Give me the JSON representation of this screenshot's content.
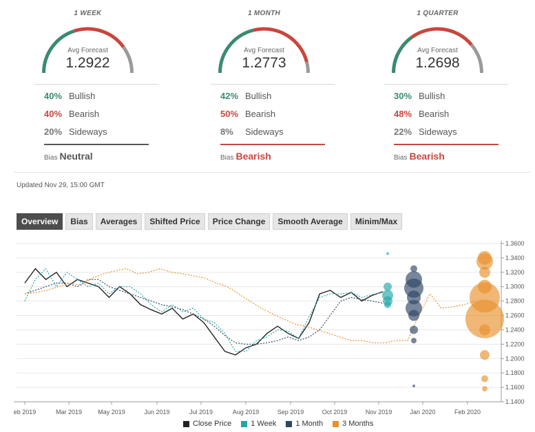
{
  "panels": [
    {
      "period": "1 WEEK",
      "avg_label": "Avg Forecast",
      "avg_value": "1.2922",
      "bullish_pct": "40%",
      "bullish_label": "Bullish",
      "bearish_pct": "40%",
      "bearish_label": "Bearish",
      "sideways_pct": "20%",
      "sideways_label": "Sideways",
      "bias_label": "Bias",
      "bias_value": "Neutral",
      "bias_color": "#555555"
    },
    {
      "period": "1 MONTH",
      "avg_label": "Avg Forecast",
      "avg_value": "1.2773",
      "bullish_pct": "42%",
      "bullish_label": "Bullish",
      "bearish_pct": "50%",
      "bearish_label": "Bearish",
      "sideways_pct": "8%",
      "sideways_label": "Sideways",
      "bias_label": "Bias",
      "bias_value": "Bearish",
      "bias_color": "#c9463d"
    },
    {
      "period": "1 QUARTER",
      "avg_label": "Avg Forecast",
      "avg_value": "1.2698",
      "bullish_pct": "30%",
      "bullish_label": "Bullish",
      "bearish_pct": "48%",
      "bearish_label": "Bearish",
      "sideways_pct": "22%",
      "sideways_label": "Sideways",
      "bias_label": "Bias",
      "bias_value": "Bearish",
      "bias_color": "#c9463d"
    }
  ],
  "colors": {
    "bullish": "#3b8a72",
    "bearish": "#c9463d",
    "sideways": "#9a9a9a"
  },
  "updated": "Updated Nov 29, 15:00 GMT",
  "tabs": [
    "Overview",
    "Bias",
    "Averages",
    "Shifted Price",
    "Price Change",
    "Smooth Average",
    "Minim/Max"
  ],
  "active_tab": 0,
  "chart_data": {
    "type": "line",
    "x_ticks": [
      "eb 2019",
      "Mar 2019",
      "May 2019",
      "Jun 2019",
      "Jul 2019",
      "Aug 2019",
      "Sep 2019",
      "Oct 2019",
      "Nov 2019",
      "Jan 2020",
      "Feb 2020"
    ],
    "y_ticks": [
      "1.3600",
      "1.3400",
      "1.3200",
      "1.3000",
      "1.2800",
      "1.2600",
      "1.2400",
      "1.2200",
      "1.2000",
      "1.1800",
      "1.1600",
      "1.1400"
    ],
    "ylim": [
      1.14,
      1.36
    ],
    "grid": true,
    "legend_position": "bottom",
    "series": [
      {
        "name": "Close Price",
        "color": "#222222",
        "style": "solid",
        "values": [
          1.305,
          1.325,
          1.31,
          1.32,
          1.3,
          1.31,
          1.305,
          1.3,
          1.285,
          1.3,
          1.29,
          1.275,
          1.268,
          1.262,
          1.27,
          1.255,
          1.262,
          1.25,
          1.23,
          1.21,
          1.205,
          1.215,
          1.22,
          1.235,
          1.245,
          1.235,
          1.228,
          1.25,
          1.29,
          1.295,
          1.285,
          1.292,
          1.28,
          1.288,
          1.293
        ]
      },
      {
        "name": "1 Week",
        "color": "#22a7a7",
        "style": "dotted",
        "values": [
          1.28,
          1.31,
          1.325,
          1.3,
          1.32,
          1.31,
          1.3,
          1.305,
          1.29,
          1.3,
          1.3,
          1.29,
          1.275,
          1.265,
          1.275,
          1.265,
          1.27,
          1.255,
          1.25,
          1.235,
          1.21,
          1.21,
          1.225,
          1.23,
          1.24,
          1.238,
          1.228,
          1.258,
          1.285,
          1.29,
          1.29,
          1.292,
          1.285,
          1.289,
          1.292
        ]
      },
      {
        "name": "1 Month",
        "color": "#2e4566",
        "style": "dotted",
        "values": [
          1.29,
          1.295,
          1.3,
          1.305,
          1.305,
          1.3,
          1.31,
          1.31,
          1.3,
          1.295,
          1.29,
          1.285,
          1.28,
          1.275,
          1.272,
          1.268,
          1.262,
          1.255,
          1.245,
          1.232,
          1.222,
          1.22,
          1.22,
          1.222,
          1.225,
          1.23,
          1.225,
          1.23,
          1.24,
          1.26,
          1.28,
          1.285,
          1.282,
          1.28,
          1.277
        ]
      },
      {
        "name": "3 Months",
        "color": "#e8902c",
        "style": "dotted",
        "values": [
          1.29,
          1.292,
          1.295,
          1.3,
          1.305,
          1.302,
          1.312,
          1.318,
          1.322,
          1.325,
          1.318,
          1.32,
          1.325,
          1.32,
          1.318,
          1.315,
          1.312,
          1.305,
          1.3,
          1.29,
          1.28,
          1.27,
          1.262,
          1.255,
          1.248,
          1.245,
          1.24,
          1.235,
          1.23,
          1.225,
          1.225,
          1.222,
          1.222,
          1.225,
          1.225,
          1.26,
          1.29,
          1.27,
          1.272,
          1.275,
          1.28
        ]
      }
    ],
    "bubbles": {
      "1 Week": [
        1.346,
        1.3,
        1.288,
        1.28,
        1.275
      ],
      "1 Month": [
        1.325,
        1.31,
        1.298,
        1.285,
        1.27,
        1.26,
        1.24,
        1.225,
        1.162
      ],
      "3 Months": [
        1.34,
        1.335,
        1.32,
        1.3,
        1.285,
        1.255,
        1.24,
        1.205,
        1.172,
        1.158
      ]
    }
  }
}
